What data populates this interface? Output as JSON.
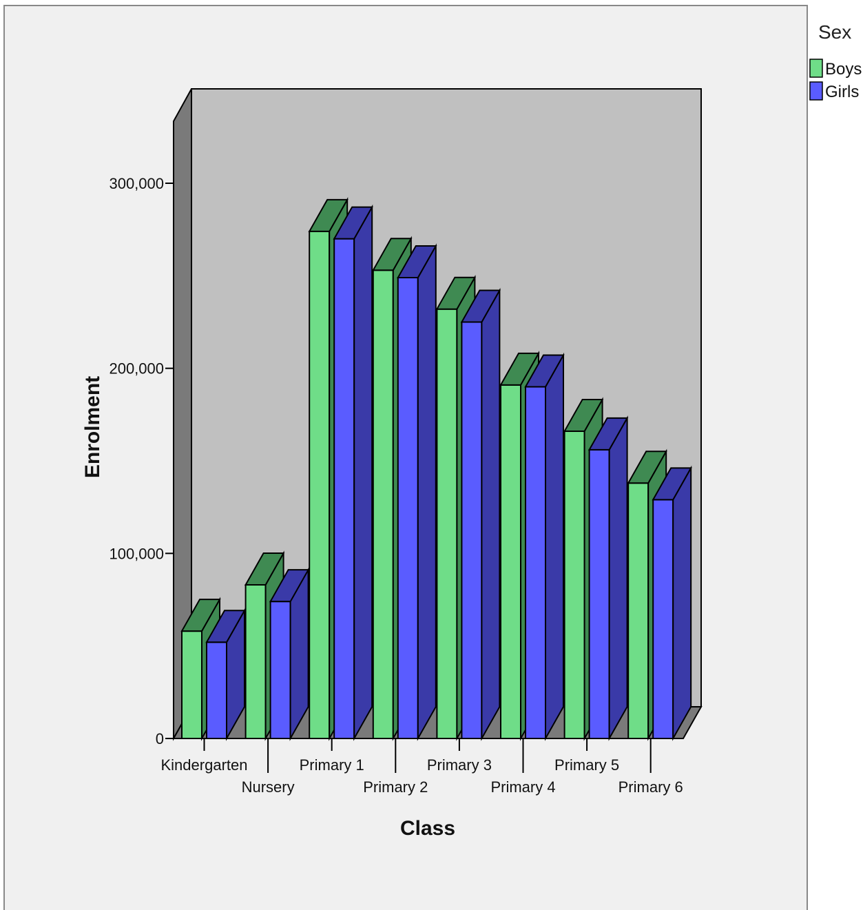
{
  "chart_data": {
    "type": "bar",
    "style": "3d-clustered",
    "xlabel": "Class",
    "ylabel": "Enrolment",
    "categories": [
      "Kindergarten",
      "Nursery",
      "Primary 1",
      "Primary 2",
      "Primary 3",
      "Primary 4",
      "Primary 5",
      "Primary 6"
    ],
    "series": [
      {
        "name": "Boys",
        "color": "#6fdd88",
        "values": [
          58000,
          83000,
          274000,
          253000,
          232000,
          191000,
          166000,
          138000
        ]
      },
      {
        "name": "Girls",
        "color": "#5a5cff",
        "values": [
          52000,
          74000,
          270000,
          249000,
          225000,
          190000,
          156000,
          129000
        ]
      }
    ],
    "yticks": [
      0,
      100000,
      200000,
      300000
    ],
    "ytick_labels": [
      "0",
      "100,000",
      "200,000",
      "300,000"
    ],
    "ylim": [
      0,
      300000
    ],
    "legend": {
      "title": "Sex",
      "position": "top-right"
    },
    "grid": false
  }
}
